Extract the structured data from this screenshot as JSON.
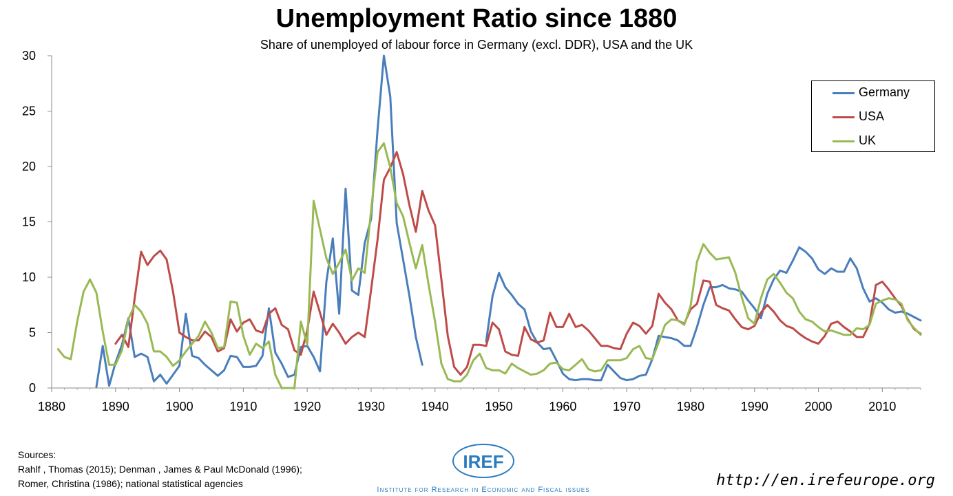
{
  "chart_data": {
    "type": "line",
    "title": "Unemployment Ratio since 1880",
    "subtitle": "Share of unemployed of labour force in Germany (excl. DDR), USA and the UK",
    "xlabel": "",
    "ylabel": "",
    "xlim": [
      1880,
      2016
    ],
    "ylim": [
      0,
      30
    ],
    "xticks": [
      1880,
      1890,
      1900,
      1910,
      1920,
      1930,
      1940,
      1950,
      1960,
      1970,
      1980,
      1990,
      2000,
      2010
    ],
    "yticks": [
      0,
      5,
      10,
      15,
      20,
      25,
      30
    ],
    "legend_position": "top-right",
    "series": [
      {
        "name": "Germany",
        "color": "#4a7ebb",
        "x": [
          1887,
          1888,
          1889,
          1890,
          1891,
          1892,
          1893,
          1894,
          1895,
          1896,
          1897,
          1898,
          1899,
          1900,
          1901,
          1902,
          1903,
          1904,
          1905,
          1906,
          1907,
          1908,
          1909,
          1910,
          1911,
          1912,
          1913,
          1914,
          1915,
          1916,
          1917,
          1918,
          1919,
          1920,
          1921,
          1922,
          1923,
          1924,
          1925,
          1926,
          1927,
          1928,
          1929,
          1930,
          1931,
          1932,
          1933,
          1934,
          1935,
          1936,
          1937,
          1938
        ],
        "values": [
          0.1,
          3.8,
          0.2,
          2.3,
          3.9,
          6.3,
          2.8,
          3.1,
          2.8,
          0.6,
          1.2,
          0.4,
          1.2,
          2.0,
          6.7,
          2.9,
          2.7,
          2.1,
          1.6,
          1.1,
          1.6,
          2.9,
          2.8,
          1.9,
          1.9,
          2.0,
          2.9,
          7.2,
          3.2,
          2.2,
          1.0,
          1.2,
          3.7,
          3.8,
          2.8,
          1.5,
          9.6,
          13.5,
          6.7,
          18.0,
          8.8,
          8.4,
          13.1,
          15.3,
          23.3,
          30.0,
          26.3,
          14.9,
          11.6,
          8.3,
          4.6,
          2.1
        ]
      },
      {
        "name": "Germany",
        "color": "#4a7ebb",
        "x": [
          1948,
          1949,
          1950,
          1951,
          1952,
          1953,
          1954,
          1955,
          1956,
          1957,
          1958,
          1959,
          1960,
          1961,
          1962,
          1963,
          1964,
          1965,
          1966,
          1967,
          1968,
          1969,
          1970,
          1971,
          1972,
          1973,
          1974,
          1975,
          1976,
          1977,
          1978,
          1979,
          1980,
          1981,
          1982,
          1983,
          1984,
          1985,
          1986,
          1987,
          1988,
          1989,
          1990,
          1991,
          1992,
          1993,
          1994,
          1995,
          1996,
          1997,
          1998,
          1999,
          2000,
          2001,
          2002,
          2003,
          2004,
          2005,
          2006,
          2007,
          2008,
          2009,
          2010,
          2011,
          2012,
          2013,
          2014,
          2015,
          2016
        ],
        "values": [
          4.2,
          8.3,
          10.4,
          9.1,
          8.4,
          7.6,
          7.1,
          5.1,
          4.1,
          3.5,
          3.6,
          2.5,
          1.3,
          0.8,
          0.7,
          0.8,
          0.8,
          0.7,
          0.7,
          2.1,
          1.5,
          0.9,
          0.7,
          0.8,
          1.1,
          1.2,
          2.6,
          4.7,
          4.6,
          4.5,
          4.3,
          3.8,
          3.8,
          5.5,
          7.5,
          9.1,
          9.1,
          9.3,
          9.0,
          8.9,
          8.7,
          7.9,
          7.2,
          6.3,
          8.5,
          9.8,
          10.6,
          10.4,
          11.5,
          12.7,
          12.3,
          11.7,
          10.7,
          10.3,
          10.8,
          10.5,
          10.5,
          11.7,
          10.8,
          9.0,
          7.8,
          8.1,
          7.7,
          7.1,
          6.8,
          6.9,
          6.7,
          6.4,
          6.1
        ]
      },
      {
        "name": "USA",
        "color": "#be4b48",
        "x": [
          1890,
          1891,
          1892,
          1893,
          1894,
          1895,
          1896,
          1897,
          1898,
          1899,
          1900,
          1901,
          1902,
          1903,
          1904,
          1905,
          1906,
          1907,
          1908,
          1909,
          1910,
          1911,
          1912,
          1913,
          1914,
          1915,
          1916,
          1917,
          1918,
          1919,
          1920,
          1921,
          1922,
          1923,
          1924,
          1925,
          1926,
          1927,
          1928,
          1929,
          1930,
          1931,
          1932,
          1933,
          1934,
          1935,
          1936,
          1937,
          1938,
          1939,
          1940,
          1941,
          1942,
          1943,
          1944,
          1945,
          1946,
          1947,
          1948,
          1949,
          1950,
          1951,
          1952,
          1953,
          1954,
          1955,
          1956,
          1957,
          1958,
          1959,
          1960,
          1961,
          1962,
          1963,
          1964,
          1965,
          1966,
          1967,
          1968,
          1969,
          1970,
          1971,
          1972,
          1973,
          1974,
          1975,
          1976,
          1977,
          1978,
          1979,
          1980,
          1981,
          1982,
          1983,
          1984,
          1985,
          1986,
          1987,
          1988,
          1989,
          1990,
          1991,
          1992,
          1993,
          1994,
          1995,
          1996,
          1997,
          1998,
          1999,
          2000,
          2001,
          2002,
          2003,
          2004,
          2005,
          2006,
          2007,
          2008,
          2009,
          2010,
          2011,
          2012,
          2013,
          2014,
          2015,
          2016
        ],
        "values": [
          4.0,
          4.8,
          3.7,
          8.1,
          12.3,
          11.1,
          11.9,
          12.4,
          11.6,
          8.7,
          5.0,
          4.6,
          4.3,
          4.3,
          5.1,
          4.6,
          3.3,
          3.6,
          6.2,
          5.1,
          5.9,
          6.2,
          5.2,
          5.0,
          6.7,
          7.2,
          5.7,
          5.3,
          3.4,
          3.0,
          5.2,
          8.7,
          6.8,
          4.8,
          5.8,
          5.0,
          4.0,
          4.6,
          5.0,
          4.6,
          8.9,
          13.4,
          18.8,
          19.9,
          21.3,
          19.3,
          16.5,
          14.1,
          17.8,
          16.0,
          14.7,
          9.8,
          4.7,
          1.9,
          1.2,
          1.9,
          3.9,
          3.9,
          3.8,
          5.9,
          5.3,
          3.3,
          3.0,
          2.9,
          5.5,
          4.4,
          4.1,
          4.3,
          6.8,
          5.5,
          5.5,
          6.7,
          5.5,
          5.7,
          5.2,
          4.5,
          3.8,
          3.8,
          3.6,
          3.5,
          4.9,
          5.9,
          5.6,
          4.9,
          5.6,
          8.5,
          7.7,
          7.1,
          6.1,
          5.8,
          7.1,
          7.6,
          9.7,
          9.6,
          7.5,
          7.2,
          7.0,
          6.2,
          5.5,
          5.3,
          5.6,
          6.8,
          7.5,
          6.9,
          6.1,
          5.6,
          5.4,
          4.9,
          4.5,
          4.2,
          4.0,
          4.7,
          5.8,
          6.0,
          5.5,
          5.1,
          4.6,
          4.6,
          5.8,
          9.3,
          9.6,
          8.9,
          8.1,
          7.4,
          6.2,
          5.3,
          4.9
        ]
      },
      {
        "name": "UK",
        "color": "#98b954",
        "x": [
          1881,
          1882,
          1883,
          1884,
          1885,
          1886,
          1887,
          1888,
          1889,
          1890,
          1891,
          1892,
          1893,
          1894,
          1895,
          1896,
          1897,
          1898,
          1899,
          1900,
          1901,
          1902,
          1903,
          1904,
          1905,
          1906,
          1907,
          1908,
          1909,
          1910,
          1911,
          1912,
          1913,
          1914,
          1915,
          1916,
          1917,
          1918,
          1919,
          1920,
          1921,
          1922,
          1923,
          1924,
          1925,
          1926,
          1927,
          1928,
          1929,
          1930,
          1931,
          1932,
          1933,
          1934,
          1935,
          1936,
          1937,
          1938,
          1939,
          1940,
          1941,
          1942,
          1943,
          1944,
          1945,
          1946,
          1947,
          1948,
          1949,
          1950,
          1951,
          1952,
          1953,
          1954,
          1955,
          1956,
          1957,
          1958,
          1959,
          1960,
          1961,
          1962,
          1963,
          1964,
          1965,
          1966,
          1967,
          1968,
          1969,
          1970,
          1971,
          1972,
          1973,
          1974,
          1975,
          1976,
          1977,
          1978,
          1979,
          1980,
          1981,
          1982,
          1983,
          1984,
          1985,
          1986,
          1987,
          1988,
          1989,
          1990,
          1991,
          1992,
          1993,
          1994,
          1995,
          1996,
          1997,
          1998,
          1999,
          2000,
          2001,
          2002,
          2003,
          2004,
          2005,
          2006,
          2007,
          2008,
          2009,
          2010,
          2011,
          2012,
          2013,
          2014,
          2015,
          2016
        ],
        "values": [
          3.5,
          2.8,
          2.6,
          6.0,
          8.7,
          9.8,
          8.6,
          5.1,
          2.1,
          2.1,
          3.4,
          6.2,
          7.5,
          6.9,
          5.8,
          3.3,
          3.3,
          2.8,
          2.0,
          2.5,
          3.3,
          4.0,
          4.7,
          6.0,
          5.0,
          3.6,
          3.7,
          7.8,
          7.7,
          4.7,
          3.0,
          4.0,
          3.6,
          4.2,
          1.2,
          0.0,
          0.0,
          0.0,
          6.0,
          3.9,
          16.9,
          14.3,
          11.7,
          10.3,
          11.3,
          12.5,
          9.7,
          10.8,
          10.4,
          16.1,
          21.3,
          22.1,
          19.9,
          16.7,
          15.5,
          13.1,
          10.8,
          12.9,
          9.3,
          6.0,
          2.2,
          0.8,
          0.6,
          0.6,
          1.2,
          2.5,
          3.1,
          1.8,
          1.6,
          1.6,
          1.3,
          2.2,
          1.8,
          1.5,
          1.2,
          1.3,
          1.6,
          2.2,
          2.3,
          1.7,
          1.6,
          2.1,
          2.6,
          1.7,
          1.5,
          1.6,
          2.5,
          2.5,
          2.5,
          2.7,
          3.5,
          3.8,
          2.7,
          2.6,
          4.1,
          5.7,
          6.2,
          6.1,
          5.7,
          7.4,
          11.4,
          13.0,
          12.2,
          11.6,
          11.7,
          11.8,
          10.4,
          8.2,
          6.3,
          5.8,
          8.1,
          9.8,
          10.3,
          9.5,
          8.6,
          8.1,
          6.9,
          6.2,
          6.0,
          5.5,
          5.1,
          5.2,
          5.0,
          4.8,
          4.8,
          5.4,
          5.3,
          5.7,
          7.6,
          7.9,
          8.1,
          8.0,
          7.6,
          6.1,
          5.4,
          4.8
        ]
      }
    ],
    "legend": [
      {
        "name": "Germany",
        "color": "#4a7ebb"
      },
      {
        "name": "USA",
        "color": "#be4b48"
      },
      {
        "name": "UK",
        "color": "#98b954"
      }
    ]
  },
  "footer": {
    "sources_label": "Sources:",
    "sources_line1": "Rahlf , Thomas (2015);  Denman , James & Paul McDonald (1996);",
    "sources_line2": "Romer, Christina (1986); national statistical agencies",
    "logo_text": "IREF",
    "logo_caption": "Institute for Research in Economic and Fiscal issues",
    "url": "http://en.irefeurope.org"
  }
}
